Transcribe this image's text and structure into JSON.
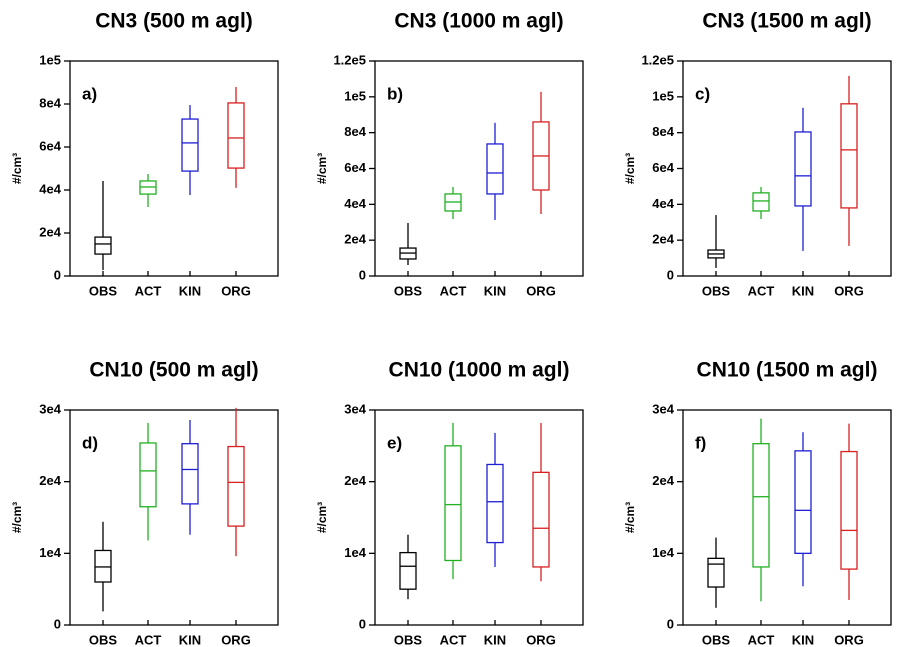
{
  "chart_data": [
    {
      "type": "box",
      "title": "CN3 (500 m agl)",
      "label": "a)",
      "ylabel": "#/cm³",
      "categories": [
        "OBS",
        "ACT",
        "KIN",
        "ORG"
      ],
      "colors": [
        "#000000",
        "#22b022",
        "#1f1fd6",
        "#d92020"
      ],
      "boxes": [
        {
          "min": 2800,
          "q1": 10200,
          "median": 14900,
          "q3": 18100,
          "max": 44200
        },
        {
          "min": 32100,
          "q1": 38100,
          "median": 41400,
          "q3": 44200,
          "max": 47400
        },
        {
          "min": 37700,
          "q1": 48800,
          "median": 61900,
          "q3": 73000,
          "max": 79500
        },
        {
          "min": 41000,
          "q1": 50200,
          "median": 64200,
          "q3": 80500,
          "max": 87900
        }
      ],
      "ylim": [
        0,
        100000
      ],
      "yticks": [
        0,
        {
          "value": 20000,
          "label": "2e4"
        },
        {
          "value": 40000,
          "label": "4e4"
        },
        {
          "value": 60000,
          "label": "6e4"
        },
        {
          "value": 80000,
          "label": "8e4"
        },
        {
          "value": 100000,
          "label": "1e5"
        }
      ]
    },
    {
      "type": "box",
      "title": "CN3 (1000 m agl)",
      "label": "b)",
      "ylabel": "#/cm³",
      "categories": [
        "OBS",
        "ACT",
        "KIN",
        "ORG"
      ],
      "colors": [
        "#000000",
        "#22b022",
        "#1f1fd6",
        "#d92020"
      ],
      "boxes": [
        {
          "min": 6100,
          "q1": 9500,
          "median": 12800,
          "q3": 15600,
          "max": 29600
        },
        {
          "min": 31800,
          "q1": 36300,
          "median": 41300,
          "q3": 45800,
          "max": 49700
        },
        {
          "min": 31300,
          "q1": 45800,
          "median": 57500,
          "q3": 73700,
          "max": 85500
        },
        {
          "min": 34600,
          "q1": 48000,
          "median": 67000,
          "q3": 86000,
          "max": 102800
        }
      ],
      "ylim": [
        0,
        120000
      ],
      "yticks": [
        0,
        {
          "value": 20000,
          "label": "2e4"
        },
        {
          "value": 40000,
          "label": "4e4"
        },
        {
          "value": 60000,
          "label": "6e4"
        },
        {
          "value": 80000,
          "label": "8e4"
        },
        {
          "value": 100000,
          "label": "1e5"
        },
        {
          "value": 120000,
          "label": "1.2e5"
        }
      ]
    },
    {
      "type": "box",
      "title": "CN3 (1500 m agl)",
      "label": "c)",
      "ylabel": "#/cm³",
      "categories": [
        "OBS",
        "ACT",
        "KIN",
        "ORG"
      ],
      "colors": [
        "#000000",
        "#22b022",
        "#1f1fd6",
        "#d92020"
      ],
      "boxes": [
        {
          "min": 4500,
          "q1": 10100,
          "median": 12300,
          "q3": 14500,
          "max": 34000
        },
        {
          "min": 31800,
          "q1": 36300,
          "median": 41900,
          "q3": 46400,
          "max": 49700
        },
        {
          "min": 14000,
          "q1": 39100,
          "median": 55900,
          "q3": 80400,
          "max": 93900
        },
        {
          "min": 16800,
          "q1": 38000,
          "median": 70400,
          "q3": 96100,
          "max": 111700
        }
      ],
      "ylim": [
        0,
        120000
      ],
      "yticks": [
        0,
        {
          "value": 20000,
          "label": "2e4"
        },
        {
          "value": 40000,
          "label": "4e4"
        },
        {
          "value": 60000,
          "label": "6e4"
        },
        {
          "value": 80000,
          "label": "8e4"
        },
        {
          "value": 100000,
          "label": "1e5"
        },
        {
          "value": 120000,
          "label": "1.2e5"
        }
      ]
    },
    {
      "type": "box",
      "title": "CN10 (500 m agl)",
      "label": "d)",
      "ylabel": "#/cm³",
      "categories": [
        "OBS",
        "ACT",
        "KIN",
        "ORG"
      ],
      "colors": [
        "#000000",
        "#22b022",
        "#1f1fd6",
        "#d92020"
      ],
      "boxes": [
        {
          "min": 1900,
          "q1": 6000,
          "median": 8100,
          "q3": 10400,
          "max": 14400
        },
        {
          "min": 11800,
          "q1": 16500,
          "median": 21500,
          "q3": 25400,
          "max": 28200
        },
        {
          "min": 12600,
          "q1": 16900,
          "median": 21700,
          "q3": 25300,
          "max": 28600
        },
        {
          "min": 9600,
          "q1": 13800,
          "median": 19900,
          "q3": 24900,
          "max": 30300
        }
      ],
      "ylim": [
        0,
        30000
      ],
      "yticks": [
        0,
        {
          "value": 10000,
          "label": "1e4"
        },
        {
          "value": 20000,
          "label": "2e4"
        },
        {
          "value": 30000,
          "label": "3e4"
        }
      ]
    },
    {
      "type": "box",
      "title": "CN10 (1000 m agl)",
      "label": "e)",
      "ylabel": "#/cm³",
      "categories": [
        "OBS",
        "ACT",
        "KIN",
        "ORG"
      ],
      "colors": [
        "#000000",
        "#22b022",
        "#1f1fd6",
        "#d92020"
      ],
      "boxes": [
        {
          "min": 3600,
          "q1": 5000,
          "median": 8200,
          "q3": 10100,
          "max": 12600
        },
        {
          "min": 6400,
          "q1": 9000,
          "median": 16800,
          "q3": 25000,
          "max": 28200
        },
        {
          "min": 8100,
          "q1": 11500,
          "median": 17200,
          "q3": 22400,
          "max": 26800
        },
        {
          "min": 6100,
          "q1": 8100,
          "median": 13500,
          "q3": 21300,
          "max": 28200
        }
      ],
      "ylim": [
        0,
        30000
      ],
      "yticks": [
        0,
        {
          "value": 10000,
          "label": "1e4"
        },
        {
          "value": 20000,
          "label": "2e4"
        },
        {
          "value": 30000,
          "label": "3e4"
        }
      ]
    },
    {
      "type": "box",
      "title": "CN10 (1500 m agl)",
      "label": "f)",
      "ylabel": "#/cm³",
      "categories": [
        "OBS",
        "ACT",
        "KIN",
        "ORG"
      ],
      "colors": [
        "#000000",
        "#22b022",
        "#1f1fd6",
        "#d92020"
      ],
      "boxes": [
        {
          "min": 2400,
          "q1": 5300,
          "median": 8500,
          "q3": 9300,
          "max": 12200
        },
        {
          "min": 3300,
          "q1": 8100,
          "median": 17900,
          "q3": 25300,
          "max": 28800
        },
        {
          "min": 5400,
          "q1": 10000,
          "median": 16000,
          "q3": 24300,
          "max": 26900
        },
        {
          "min": 3500,
          "q1": 7800,
          "median": 13200,
          "q3": 24200,
          "max": 28100
        }
      ],
      "ylim": [
        0,
        30000
      ],
      "yticks": [
        0,
        {
          "value": 10000,
          "label": "1e4"
        },
        {
          "value": 20000,
          "label": "2e4"
        },
        {
          "value": 30000,
          "label": "3e4"
        }
      ]
    }
  ]
}
